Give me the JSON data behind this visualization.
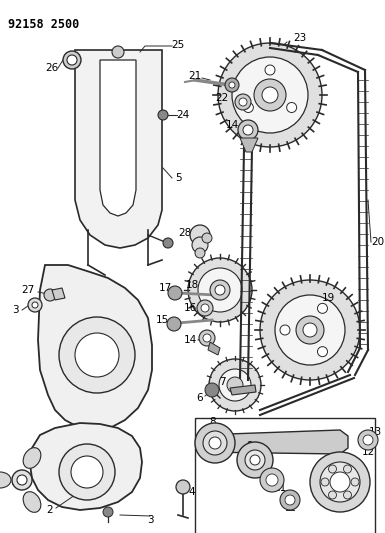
{
  "title": "92158 2500",
  "bg_color": "#ffffff",
  "line_color": "#2a2a2a",
  "label_color": "#000000",
  "fig_width": 3.85,
  "fig_height": 5.33,
  "dpi": 100
}
